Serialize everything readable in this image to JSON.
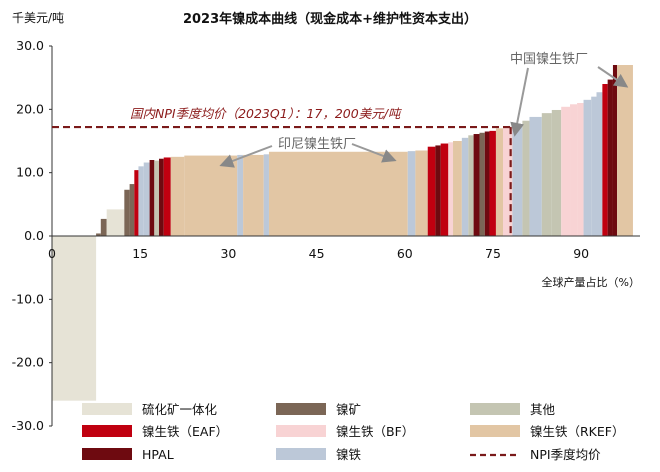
{
  "chart_data": {
    "type": "bar",
    "title": "2023年镍成本曲线（现金成本+维护性资本支出）",
    "ylabel": "千美元/吨",
    "xlabel": "全球产量占比（%）",
    "ylim": [
      -30,
      30
    ],
    "xlim": [
      0,
      100
    ],
    "yticks": [
      "30.0",
      "20.0",
      "10.0",
      "0.0",
      "-10.0",
      "-20.0",
      "-30.0"
    ],
    "xticks": [
      "0",
      "15",
      "30",
      "45",
      "60",
      "75",
      "90"
    ],
    "grid": false,
    "legend_position": "bottom",
    "reference_line": {
      "label": "国内NPI季度均价（2023Q1）：17，200美元/吨",
      "legend_label": "NPI季度均价",
      "value": 17.2,
      "drop_x": 78,
      "color": "#7a1a1a"
    },
    "annotations": [
      {
        "label": "印尼镍生铁厂",
        "near_x": 30,
        "near_y": 12.8
      },
      {
        "label": "中国镍生铁厂",
        "near_x": 96,
        "near_y": 23.5
      }
    ],
    "series": [
      {
        "name": "硫化矿一体化",
        "color": "#e6e3d6"
      },
      {
        "name": "镍矿",
        "color": "#7b6656"
      },
      {
        "name": "其他",
        "color": "#c4c5b2"
      },
      {
        "name": "镍生铁（EAF）",
        "color": "#c00010"
      },
      {
        "name": "镍生铁（BF）",
        "color": "#f8d3d4"
      },
      {
        "name": "镍生铁（RKEF）",
        "color": "#e2c6a4"
      },
      {
        "name": "HPAL",
        "color": "#6e0a10"
      },
      {
        "name": "镍铁",
        "color": "#bcc8d8"
      }
    ],
    "bars": [
      {
        "series": "硫化矿一体化",
        "x0": 0,
        "x1": 7.5,
        "value": -26
      },
      {
        "series": "镍矿",
        "x0": 7.5,
        "x1": 8.3,
        "value": 0.4
      },
      {
        "series": "镍矿",
        "x0": 8.3,
        "x1": 9.3,
        "value": 2.7
      },
      {
        "series": "硫化矿一体化",
        "x0": 9.3,
        "x1": 12.3,
        "value": 4.2
      },
      {
        "series": "镍矿",
        "x0": 12.3,
        "x1": 13.2,
        "value": 7.3
      },
      {
        "series": "镍矿",
        "x0": 13.2,
        "x1": 14.0,
        "value": 8.2
      },
      {
        "series": "镍生铁（EAF）",
        "x0": 14.0,
        "x1": 14.7,
        "value": 10.4
      },
      {
        "series": "镍铁",
        "x0": 14.7,
        "x1": 15.6,
        "value": 11.0
      },
      {
        "series": "镍铁",
        "x0": 15.6,
        "x1": 16.6,
        "value": 11.6
      },
      {
        "series": "HPAL",
        "x0": 16.6,
        "x1": 17.4,
        "value": 12.0
      },
      {
        "series": "其他",
        "x0": 17.4,
        "x1": 18.2,
        "value": 11.9
      },
      {
        "series": "HPAL",
        "x0": 18.2,
        "x1": 19.0,
        "value": 12.2
      },
      {
        "series": "镍生铁（EAF）",
        "x0": 19.0,
        "x1": 20.2,
        "value": 12.4
      },
      {
        "series": "镍生铁（RKEF）",
        "x0": 20.2,
        "x1": 22.5,
        "value": 12.5
      },
      {
        "series": "镍生铁（RKEF）",
        "x0": 22.5,
        "x1": 31.5,
        "value": 12.7
      },
      {
        "series": "镍铁",
        "x0": 31.5,
        "x1": 32.5,
        "value": 12.8
      },
      {
        "series": "镍生铁（RKEF）",
        "x0": 32.5,
        "x1": 36.0,
        "value": 12.8
      },
      {
        "series": "镍铁",
        "x0": 36.0,
        "x1": 36.9,
        "value": 12.9
      },
      {
        "series": "镍生铁（RKEF）",
        "x0": 36.9,
        "x1": 60.5,
        "value": 13.3
      },
      {
        "series": "镍铁",
        "x0": 60.5,
        "x1": 61.8,
        "value": 13.4
      },
      {
        "series": "镍生铁（RKEF）",
        "x0": 61.8,
        "x1": 63.9,
        "value": 13.5
      },
      {
        "series": "镍生铁（EAF）",
        "x0": 63.9,
        "x1": 65.2,
        "value": 14.1
      },
      {
        "series": "HPAL",
        "x0": 65.2,
        "x1": 66.1,
        "value": 14.3
      },
      {
        "series": "镍生铁（EAF）",
        "x0": 66.1,
        "x1": 67.4,
        "value": 14.6
      },
      {
        "series": "镍生铁（BF）",
        "x0": 67.4,
        "x1": 68.2,
        "value": 14.8
      },
      {
        "series": "镍生铁（RKEF）",
        "x0": 68.2,
        "x1": 69.7,
        "value": 15.0
      },
      {
        "series": "镍铁",
        "x0": 69.7,
        "x1": 70.8,
        "value": 15.5
      },
      {
        "series": "其他",
        "x0": 70.8,
        "x1": 71.7,
        "value": 15.9
      },
      {
        "series": "HPAL",
        "x0": 71.7,
        "x1": 72.7,
        "value": 16.1
      },
      {
        "series": "镍矿",
        "x0": 72.7,
        "x1": 73.6,
        "value": 16.3
      },
      {
        "series": "HPAL",
        "x0": 73.6,
        "x1": 74.4,
        "value": 16.5
      },
      {
        "series": "镍生铁（EAF）",
        "x0": 74.4,
        "x1": 75.5,
        "value": 16.6
      },
      {
        "series": "镍生铁（RKEF）",
        "x0": 75.5,
        "x1": 76.7,
        "value": 17.0
      },
      {
        "series": "镍生铁（BF）",
        "x0": 76.7,
        "x1": 78.3,
        "value": 17.3
      },
      {
        "series": "镍铁",
        "x0": 78.3,
        "x1": 80.0,
        "value": 17.6
      },
      {
        "series": "其他",
        "x0": 80.0,
        "x1": 81.2,
        "value": 18.2
      },
      {
        "series": "镍铁",
        "x0": 81.2,
        "x1": 83.3,
        "value": 18.8
      },
      {
        "series": "其他",
        "x0": 83.3,
        "x1": 85.0,
        "value": 19.4
      },
      {
        "series": "其他",
        "x0": 85.0,
        "x1": 86.6,
        "value": 19.9
      },
      {
        "series": "镍生铁（BF）",
        "x0": 86.6,
        "x1": 88.1,
        "value": 20.4
      },
      {
        "series": "镍生铁（BF）",
        "x0": 88.1,
        "x1": 89.3,
        "value": 20.8
      },
      {
        "series": "镍生铁（BF）",
        "x0": 89.3,
        "x1": 90.4,
        "value": 21.0
      },
      {
        "series": "镍铁",
        "x0": 90.4,
        "x1": 91.7,
        "value": 21.5
      },
      {
        "series": "镍铁",
        "x0": 91.7,
        "x1": 92.6,
        "value": 22.0
      },
      {
        "series": "镍铁",
        "x0": 92.6,
        "x1": 93.6,
        "value": 22.7
      },
      {
        "series": "镍生铁（EAF）",
        "x0": 93.6,
        "x1": 94.5,
        "value": 24.0
      },
      {
        "series": "HPAL",
        "x0": 94.5,
        "x1": 95.4,
        "value": 24.7
      },
      {
        "series": "HPAL",
        "x0": 95.4,
        "x1": 96.1,
        "value": 27.0
      },
      {
        "series": "镍生铁（RKEF）",
        "x0": 96.1,
        "x1": 98.8,
        "value": 27.0
      }
    ]
  }
}
